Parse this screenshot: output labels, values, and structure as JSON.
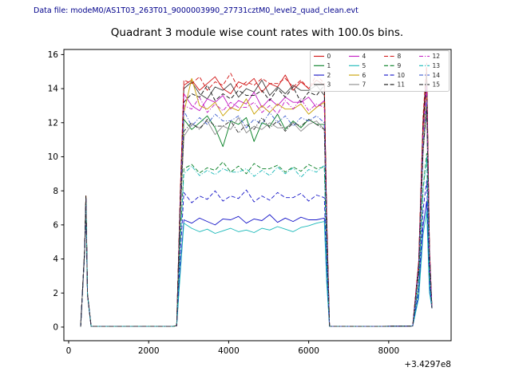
{
  "header": {
    "text": "Data file: modeM0/AS1T03_263T01_9000003990_27731cztM0_level2_quad_clean.evt",
    "color": "#00008b"
  },
  "chart_data": {
    "type": "line",
    "title": "Quadrant 3 module wise count rates with 100.0s bins.",
    "xlabel": "",
    "ylabel": "",
    "x_offset_label": "+3.4297e8",
    "x_offset_value": 342970000,
    "bin_seconds": 100.0,
    "xlim": [
      -120,
      9560
    ],
    "ylim": [
      -0.8,
      16.3
    ],
    "xticks": [
      0,
      2000,
      4000,
      6000,
      8000
    ],
    "yticks": [
      0,
      2,
      4,
      6,
      8,
      10,
      12,
      14,
      16
    ],
    "grid": false,
    "legend_position": "upper right",
    "legend_columns": 4,
    "profile": {
      "pre_x": [
        300,
        400,
        430,
        470,
        560,
        900,
        1800,
        2600,
        2700,
        2790
      ],
      "pre_y": [
        [
          "c",
          0.02
        ],
        [
          "s1",
          0.6
        ],
        [
          "s1",
          1.0
        ],
        [
          "s1",
          0.25
        ],
        [
          "c",
          0.05
        ],
        [
          "c",
          0.04
        ],
        [
          "c",
          0.05
        ],
        [
          "c",
          0.04
        ],
        [
          "c",
          0.08
        ],
        [
          "L",
          0.55
        ]
      ],
      "plateau_x": [
        2880,
        3075,
        3270,
        3465,
        3660,
        3855,
        4050,
        4245,
        4440,
        4635,
        4830,
        5025,
        5220,
        5415,
        5610,
        5805,
        6000,
        6195,
        6390
      ],
      "post_x": [
        6450,
        6520,
        7600,
        8600,
        8750,
        8860,
        8950,
        9020,
        9080
      ],
      "post_y": [
        [
          "L",
          0.45
        ],
        [
          "c",
          0.05
        ],
        [
          "c",
          0.04
        ],
        [
          "c",
          0.06
        ],
        [
          "s2",
          0.25
        ],
        [
          "s2",
          0.8
        ],
        [
          "s2",
          1.0
        ],
        [
          "s2",
          0.3
        ],
        [
          "c",
          1.1
        ]
      ]
    },
    "series": [
      {
        "label": "0",
        "color": "#d01010",
        "dash": "none",
        "spike1": 7.7,
        "spike2": 15.2,
        "plateau": [
          14.2,
          14.5,
          13.9,
          14.3,
          14.7,
          14.0,
          13.7,
          14.4,
          14.2,
          14.6,
          13.8,
          14.3,
          14.1,
          14.8,
          13.9,
          14.4,
          14.0,
          14.5,
          14.2
        ]
      },
      {
        "label": "1",
        "color": "#007d20",
        "dash": "none",
        "spike1": 7.6,
        "spike2": 13.0,
        "plateau": [
          12.2,
          11.6,
          12.0,
          12.4,
          11.7,
          10.6,
          12.1,
          11.9,
          12.3,
          10.9,
          12.0,
          11.8,
          12.5,
          11.6,
          12.1,
          11.7,
          12.2,
          11.9,
          11.9
        ]
      },
      {
        "label": "2",
        "color": "#1515c8",
        "dash": "none",
        "spike1": 7.5,
        "spike2": 7.4,
        "plateau": [
          6.3,
          6.1,
          6.4,
          6.2,
          6.0,
          6.35,
          6.3,
          6.5,
          6.1,
          6.35,
          6.25,
          6.6,
          6.15,
          6.4,
          6.2,
          6.45,
          6.3,
          6.3,
          6.4
        ]
      },
      {
        "label": "3",
        "color": "#3a3a3a",
        "dash": "none",
        "spike1": 7.7,
        "spike2": 15.0,
        "plateau": [
          14.0,
          14.4,
          13.7,
          13.4,
          14.1,
          13.9,
          14.3,
          13.5,
          14.0,
          13.8,
          14.5,
          13.6,
          14.1,
          13.7,
          14.2,
          13.9,
          13.9,
          14.2,
          13.6
        ]
      },
      {
        "label": "4",
        "color": "#c318c3",
        "dash": "none",
        "spike1": 7.6,
        "spike2": 14.4,
        "plateau": [
          13.7,
          13.0,
          12.7,
          13.4,
          13.2,
          13.6,
          12.8,
          13.3,
          13.1,
          13.8,
          12.9,
          13.4,
          13.0,
          13.5,
          13.2,
          13.2,
          13.5,
          12.9,
          13.3
        ]
      },
      {
        "label": "5",
        "color": "#17b8b8",
        "dash": "none",
        "spike1": 7.5,
        "spike2": 6.8,
        "plateau": [
          6.1,
          5.8,
          5.6,
          5.75,
          5.5,
          5.65,
          5.8,
          5.6,
          5.7,
          5.55,
          5.8,
          5.7,
          5.9,
          5.75,
          5.6,
          5.85,
          5.95,
          6.1,
          6.2
        ]
      },
      {
        "label": "6",
        "color": "#c8a000",
        "dash": "none",
        "spike1": 7.7,
        "spike2": 14.0,
        "plateau": [
          12.6,
          14.6,
          13.0,
          12.8,
          13.2,
          12.4,
          12.9,
          12.7,
          13.4,
          12.5,
          13.0,
          12.6,
          13.1,
          12.8,
          12.8,
          13.1,
          12.5,
          12.9,
          13.2
        ]
      },
      {
        "label": "7",
        "color": "#8c8c8c",
        "dash": "none",
        "spike1": 7.6,
        "spike2": 12.8,
        "plateau": [
          11.2,
          11.9,
          11.7,
          12.1,
          11.3,
          11.8,
          11.6,
          12.3,
          11.4,
          11.8,
          11.6,
          12.0,
          11.7,
          11.7,
          12.0,
          11.5,
          11.9,
          12.1,
          11.6
        ]
      },
      {
        "label": "8",
        "color": "#d01010",
        "dash": "dashed",
        "spike1": 7.7,
        "spike2": 15.5,
        "plateau": [
          14.5,
          14.3,
          14.7,
          13.9,
          14.4,
          14.2,
          14.9,
          14.0,
          14.4,
          14.2,
          14.6,
          14.3,
          14.3,
          14.6,
          14.1,
          14.5,
          14.0,
          14.8,
          14.3
        ]
      },
      {
        "label": "9",
        "color": "#007d20",
        "dash": "dashed",
        "spike1": 7.6,
        "spike2": 10.2,
        "plateau": [
          9.3,
          9.55,
          9.05,
          9.35,
          9.2,
          9.7,
          9.1,
          9.45,
          9.0,
          9.6,
          9.3,
          9.3,
          9.5,
          9.1,
          9.4,
          9.15,
          9.55,
          9.3,
          9.4
        ]
      },
      {
        "label": "10",
        "color": "#1515c8",
        "dash": "dashed",
        "spike1": 7.5,
        "spike2": 8.6,
        "plateau": [
          7.9,
          7.3,
          7.7,
          7.5,
          8.0,
          7.4,
          7.7,
          7.55,
          8.05,
          7.35,
          7.7,
          7.45,
          7.9,
          7.6,
          7.6,
          7.85,
          7.4,
          7.75,
          7.6
        ]
      },
      {
        "label": "11",
        "color": "#101010",
        "dash": "dashed",
        "spike1": 7.7,
        "spike2": 14.8,
        "plateau": [
          13.2,
          13.7,
          13.5,
          14.2,
          13.3,
          13.7,
          13.4,
          13.9,
          13.6,
          13.6,
          13.9,
          13.3,
          14.0,
          13.5,
          14.1,
          13.2,
          13.8,
          13.6,
          14.2
        ]
      },
      {
        "label": "12",
        "color": "#c318c3",
        "dash": "dashdot",
        "spike1": 7.6,
        "spike2": 14.1,
        "plateau": [
          13.0,
          12.8,
          13.5,
          12.6,
          13.1,
          12.7,
          13.2,
          12.9,
          12.9,
          13.2,
          12.6,
          13.0,
          12.5,
          13.3,
          12.8,
          13.4,
          12.7,
          13.1,
          12.9
        ]
      },
      {
        "label": "13",
        "color": "#17b8b8",
        "dash": "dashdot",
        "spike1": 7.5,
        "spike2": 10.0,
        "plateau": [
          9.0,
          9.45,
          8.9,
          9.2,
          8.95,
          9.3,
          9.1,
          9.1,
          9.3,
          8.85,
          9.2,
          8.9,
          9.4,
          9.0,
          9.35,
          8.8,
          9.25,
          9.1,
          9.5
        ]
      },
      {
        "label": "14",
        "color": "#3f5fd0",
        "dash": "dashdot",
        "spike1": 7.6,
        "spike2": 13.3,
        "plateau": [
          12.7,
          11.8,
          12.3,
          11.9,
          12.5,
          12.1,
          12.1,
          12.4,
          11.7,
          12.2,
          11.9,
          12.6,
          12.0,
          12.4,
          11.8,
          12.3,
          12.1,
          12.4,
          12.0
        ]
      },
      {
        "label": "15",
        "color": "#2a2a2a",
        "dash": "dashdot",
        "spike1": 7.6,
        "spike2": 12.9,
        "plateau": [
          11.5,
          12.0,
          11.6,
          12.2,
          11.8,
          11.8,
          12.1,
          11.4,
          11.9,
          11.6,
          12.3,
          11.7,
          12.1,
          11.5,
          12.0,
          11.8,
          12.2,
          11.9,
          11.6
        ]
      }
    ]
  }
}
